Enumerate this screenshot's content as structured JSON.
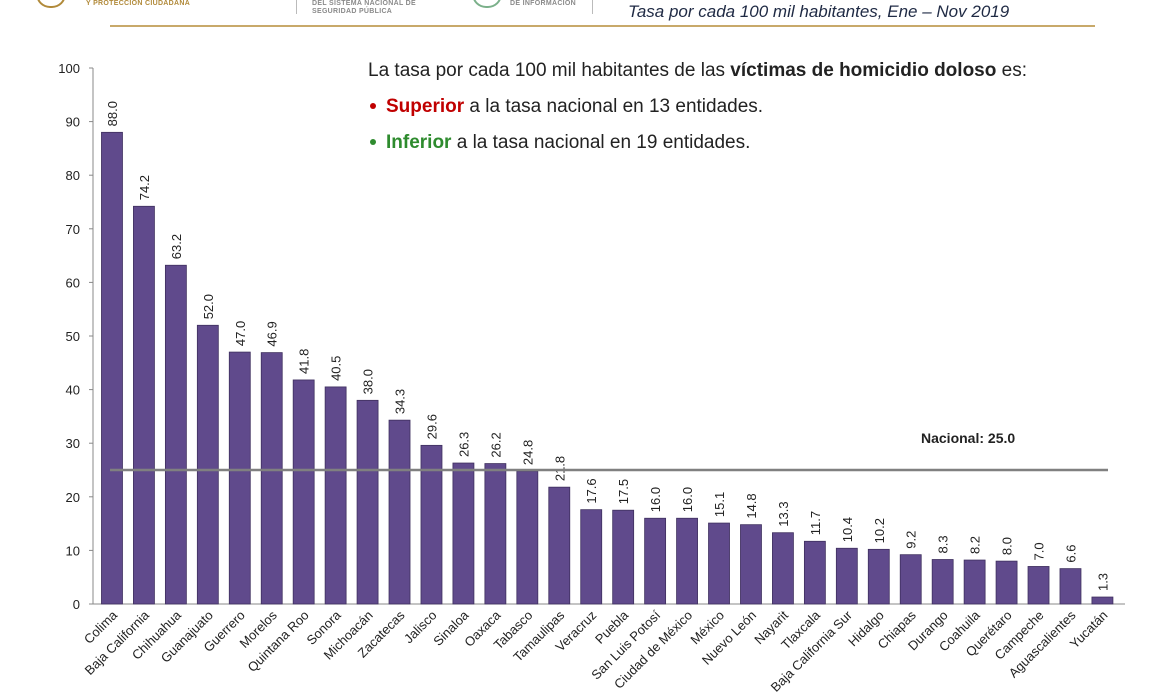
{
  "header": {
    "logo1_text": "Y PROTECCIÓN CIUDADANA",
    "logo2_text": "DEL SISTEMA NACIONAL DE SEGURIDAD PÚBLICA",
    "logo3_text": "DE INFORMACIÓN",
    "title": "Tasa por cada 100 mil habitantes, Ene – Nov 2019"
  },
  "legend": {
    "intro_prefix": "La tasa por cada 100 mil habitantes de las ",
    "intro_bold": "víctimas de homicidio doloso",
    "intro_suffix": " es:",
    "superior_word": "Superior",
    "superior_rest": " a la tasa nacional en 13 entidades.",
    "inferior_word": "Inferior",
    "inferior_rest": " a la tasa nacional en 19 entidades."
  },
  "colors": {
    "bar_fill": "#604a8c",
    "bar_edge": "#3e2f5e",
    "national_line": "#808080",
    "superior": "#c00000",
    "inferior": "#2e8b2e",
    "header_rule": "#c8a96a"
  },
  "chart_data": {
    "type": "bar",
    "title": "",
    "xlabel": "",
    "ylabel": "",
    "ylim": [
      0,
      100
    ],
    "yticks": [
      0,
      10,
      20,
      30,
      40,
      50,
      60,
      70,
      80,
      90,
      100
    ],
    "grid": false,
    "categories": [
      "Colima",
      "Baja California",
      "Chihuahua",
      "Guanajuato",
      "Guerrero",
      "Morelos",
      "Quintana Roo",
      "Sonora",
      "Michoacán",
      "Zacatecas",
      "Jalisco",
      "Sinaloa",
      "Oaxaca",
      "Tabasco",
      "Tamaulipas",
      "Veracruz",
      "Puebla",
      "San Luis Potosí",
      "Ciudad de México",
      "México",
      "Nuevo León",
      "Nayarit",
      "Tlaxcala",
      "Baja California Sur",
      "Hidalgo",
      "Chiapas",
      "Durango",
      "Coahuila",
      "Querétaro",
      "Campeche",
      "Aguascalientes",
      "Yucatán"
    ],
    "values": [
      88.0,
      74.2,
      63.2,
      52.0,
      47.0,
      46.9,
      41.8,
      40.5,
      38.0,
      34.3,
      29.6,
      26.3,
      26.2,
      24.8,
      21.8,
      17.6,
      17.5,
      16.0,
      16.0,
      15.1,
      14.8,
      13.3,
      11.7,
      10.4,
      10.2,
      9.2,
      8.3,
      8.2,
      8.0,
      7.0,
      6.6,
      1.3
    ],
    "value_labels": [
      "88.0",
      "74.2",
      "63.2",
      "52.0",
      "47.0",
      "46.9",
      "41.8",
      "40.5",
      "38.0",
      "34.3",
      "29.6",
      "26.3",
      "26.2",
      "24.8",
      "21.8",
      "17.6",
      "17.5",
      "16.0",
      "16.0",
      "15.1",
      "14.8",
      "13.3",
      "11.7",
      "10.4",
      "10.2",
      "9.2",
      "8.3",
      "8.2",
      "8.0",
      "7.0",
      "6.6",
      "1.3"
    ],
    "reference_line": {
      "value": 25.0,
      "label": "Nacional: 25.0"
    }
  }
}
